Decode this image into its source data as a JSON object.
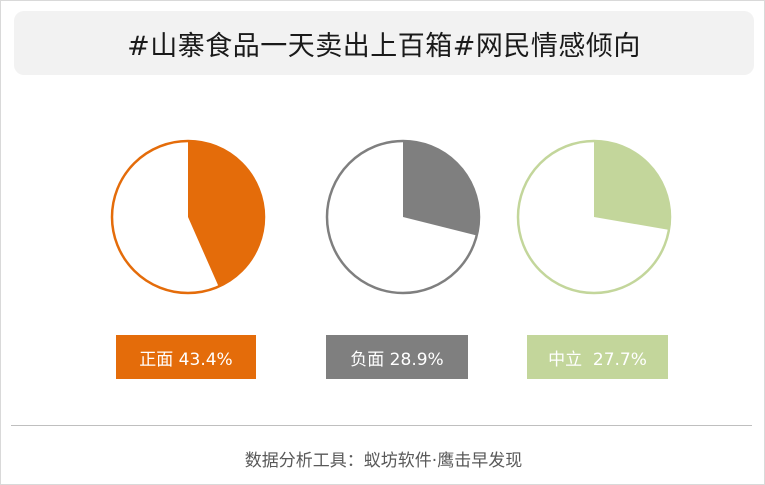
{
  "title": "#山寨食品一天卖出上百箱#网民情感倾向",
  "chart_data": {
    "type": "pie",
    "title": "#山寨食品一天卖出上百箱#网民情感倾向",
    "series": [
      {
        "name": "正面",
        "value": 43.4,
        "label": "正面 43.4%",
        "color": "#e46c0a"
      },
      {
        "name": "负面",
        "value": 28.9,
        "label": "负面 28.9%",
        "color": "#7f7f7f"
      },
      {
        "name": "中立",
        "value": 27.7,
        "label": "中立  27.7%",
        "color": "#c3d69b"
      }
    ]
  },
  "footer": "数据分析工具：蚁坊软件·鹰击早发现"
}
